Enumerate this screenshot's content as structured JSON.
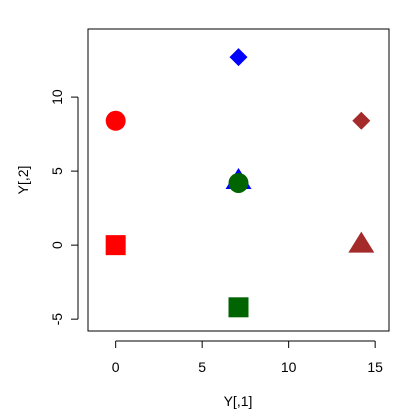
{
  "chart_data": {
    "type": "scatter",
    "title": "",
    "xlabel": "Y[,1]",
    "ylabel": "Y[,2]",
    "xlim": [
      -1.6,
      15.8
    ],
    "ylim": [
      -5.8,
      14.6
    ],
    "xticks": [
      0,
      5,
      10,
      15
    ],
    "xtick_labels": [
      "0",
      "5",
      "10",
      "15"
    ],
    "yticks": [
      -5,
      0,
      5,
      10
    ],
    "ytick_labels": [
      "-5",
      "0",
      "5",
      "10"
    ],
    "grid": false,
    "legend": false,
    "points": [
      {
        "x": 0.0,
        "y": 8.4,
        "shape": "circle",
        "color": "#ff0000"
      },
      {
        "x": 0.0,
        "y": 0.0,
        "shape": "square",
        "color": "#ff0000"
      },
      {
        "x": 7.1,
        "y": 12.7,
        "shape": "diamond",
        "color": "#0000ff"
      },
      {
        "x": 7.1,
        "y": 4.4,
        "shape": "triangle",
        "color": "#0000ff"
      },
      {
        "x": 7.1,
        "y": 4.2,
        "shape": "circle",
        "color": "#006400"
      },
      {
        "x": 7.1,
        "y": -4.2,
        "shape": "square",
        "color": "#006400"
      },
      {
        "x": 14.2,
        "y": 8.4,
        "shape": "diamond",
        "color": "#a52a2a"
      },
      {
        "x": 14.2,
        "y": 0.1,
        "shape": "triangle",
        "color": "#a52a2a"
      }
    ]
  }
}
